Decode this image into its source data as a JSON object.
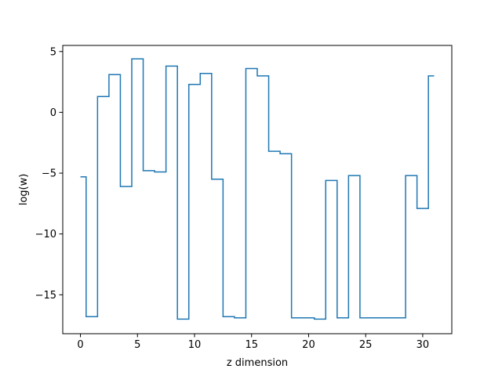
{
  "chart_data": {
    "type": "line",
    "drawstyle": "steps-mid",
    "title": "",
    "xlabel": "z dimension",
    "ylabel": "log(w)",
    "xlim": [
      -1.55,
      32.55
    ],
    "ylim": [
      -18.2,
      5.5
    ],
    "xticks": [
      0,
      5,
      10,
      15,
      20,
      25,
      30
    ],
    "yticks": [
      5,
      0,
      -5,
      -10,
      -15
    ],
    "ytick_labels": [
      "5",
      "0",
      "−5",
      "−10",
      "−15"
    ],
    "grid": false,
    "legend": "none",
    "colors": {
      "line": "#1f77b4",
      "axes": "#000000",
      "background": "#ffffff"
    },
    "series": [
      {
        "x": [
          0,
          1,
          2,
          3,
          4,
          5,
          6,
          7,
          8,
          9,
          10,
          11,
          12,
          13,
          14,
          15,
          16,
          17,
          18,
          19,
          20,
          21,
          22,
          23,
          24,
          25,
          26,
          27,
          28,
          29,
          30,
          31
        ],
        "values": [
          -5.3,
          -16.8,
          1.3,
          3.1,
          -6.1,
          4.4,
          -4.8,
          -4.9,
          3.8,
          -17.0,
          2.3,
          3.2,
          -5.5,
          -16.8,
          -16.9,
          3.6,
          3.0,
          -3.2,
          -3.4,
          -16.9,
          -16.9,
          -17.0,
          -5.6,
          -16.9,
          -5.2,
          -16.9,
          -16.9,
          -16.9,
          -16.9,
          -5.2,
          -7.9,
          3.0
        ]
      }
    ]
  }
}
